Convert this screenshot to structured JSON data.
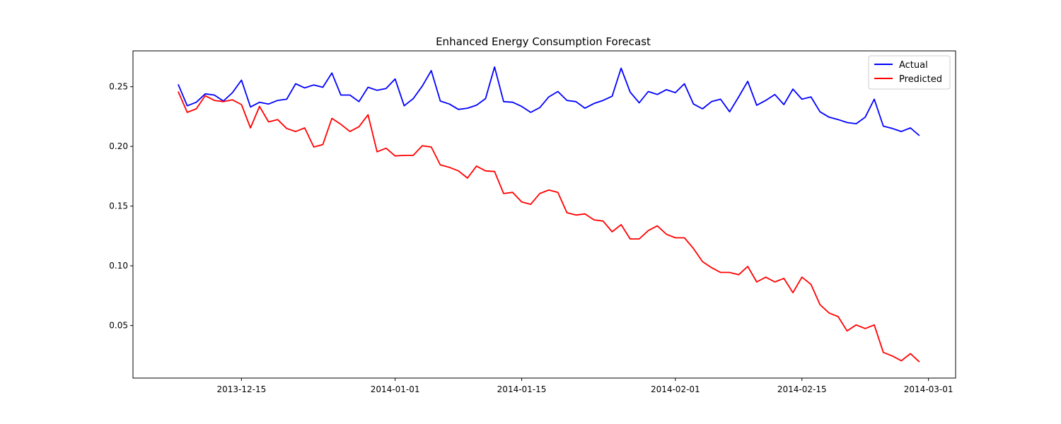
{
  "chart_data": {
    "type": "line",
    "title": "Enhanced Energy Consumption Forecast",
    "xlabel": "",
    "ylabel": "",
    "x_start": "2013-12-08",
    "x_ticks": [
      "2013-12-15",
      "2014-01-01",
      "2014-01-15",
      "2014-02-01",
      "2014-02-15",
      "2014-03-01"
    ],
    "y_ticks": [
      "0.05",
      "0.10",
      "0.15",
      "0.20",
      "0.25"
    ],
    "xlim": [
      "2013-12-03",
      "2014-03-04"
    ],
    "ylim": [
      0.006,
      0.28
    ],
    "grid": false,
    "legend_position": "top-right",
    "series": [
      {
        "name": "Actual",
        "color": "#0000ff",
        "values": [
          0.252,
          0.234,
          0.237,
          0.244,
          0.243,
          0.238,
          0.245,
          0.2555,
          0.233,
          0.237,
          0.2355,
          0.2385,
          0.2395,
          0.2525,
          0.249,
          0.2515,
          0.2495,
          0.2615,
          0.243,
          0.243,
          0.2375,
          0.2495,
          0.247,
          0.2485,
          0.2565,
          0.234,
          0.24,
          0.2505,
          0.2635,
          0.238,
          0.2355,
          0.231,
          0.232,
          0.2345,
          0.24,
          0.2665,
          0.2375,
          0.237,
          0.2335,
          0.2285,
          0.2325,
          0.2415,
          0.246,
          0.2385,
          0.2375,
          0.232,
          0.236,
          0.2385,
          0.242,
          0.2655,
          0.2455,
          0.2365,
          0.246,
          0.2435,
          0.2475,
          0.245,
          0.2525,
          0.2355,
          0.2315,
          0.2375,
          0.2395,
          0.229,
          0.2415,
          0.2545,
          0.2345,
          0.2385,
          0.2435,
          0.235,
          0.248,
          0.2395,
          0.2415,
          0.229,
          0.2245,
          0.2225,
          0.22,
          0.219,
          0.2245,
          0.2395,
          0.217,
          0.215,
          0.2125,
          0.2155,
          0.209
        ]
      },
      {
        "name": "Predicted",
        "color": "#ff0000",
        "values": [
          0.246,
          0.2285,
          0.2315,
          0.2425,
          0.2385,
          0.2375,
          0.239,
          0.235,
          0.2155,
          0.2335,
          0.2205,
          0.2225,
          0.215,
          0.2125,
          0.2155,
          0.1995,
          0.2015,
          0.2235,
          0.2185,
          0.2125,
          0.2165,
          0.2265,
          0.1955,
          0.1985,
          0.192,
          0.1925,
          0.1925,
          0.2005,
          0.1995,
          0.1845,
          0.1825,
          0.1795,
          0.1735,
          0.1835,
          0.1795,
          0.179,
          0.1605,
          0.1615,
          0.1535,
          0.1515,
          0.1605,
          0.1635,
          0.1615,
          0.1445,
          0.1425,
          0.1435,
          0.1385,
          0.1375,
          0.1285,
          0.1345,
          0.1225,
          0.1225,
          0.1295,
          0.1335,
          0.1265,
          0.1235,
          0.1235,
          0.1145,
          0.1035,
          0.0985,
          0.0945,
          0.0945,
          0.0925,
          0.0995,
          0.0865,
          0.0905,
          0.0865,
          0.0895,
          0.0775,
          0.0905,
          0.0845,
          0.0675,
          0.0605,
          0.0575,
          0.0455,
          0.0505,
          0.0475,
          0.0505,
          0.0275,
          0.0245,
          0.0205,
          0.0265,
          0.0195
        ]
      }
    ]
  }
}
